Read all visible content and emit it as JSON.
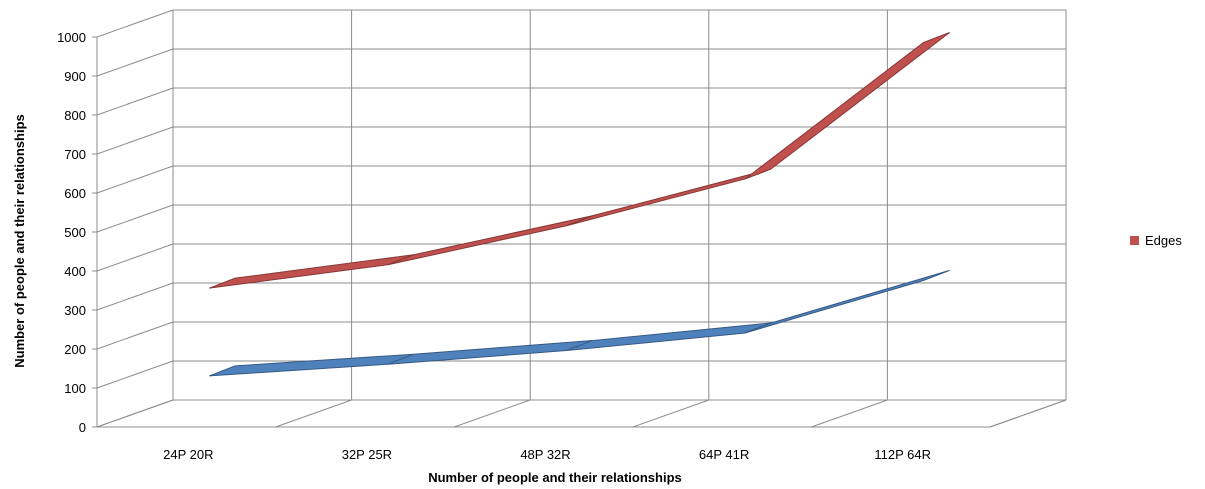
{
  "chart_data": {
    "type": "line",
    "title": "",
    "xlabel": "Number of people and their relationships",
    "ylabel": "Number of people and their relationships",
    "categories": [
      "24P 20R",
      "32P 25R",
      "48P 32R",
      "64P 41R",
      "112P 64R"
    ],
    "series": [
      {
        "name": "Edges",
        "color": "#c0504d",
        "values": [
          350,
          410,
          510,
          630,
          980
        ]
      },
      {
        "name": "",
        "color": "#4f81bd",
        "values": [
          125,
          155,
          190,
          235,
          370
        ]
      }
    ],
    "ylim": [
      0,
      1000
    ],
    "yticks": [
      0,
      100,
      200,
      300,
      400,
      500,
      600,
      700,
      800,
      900,
      1000
    ],
    "grid": true,
    "legend": "right"
  }
}
